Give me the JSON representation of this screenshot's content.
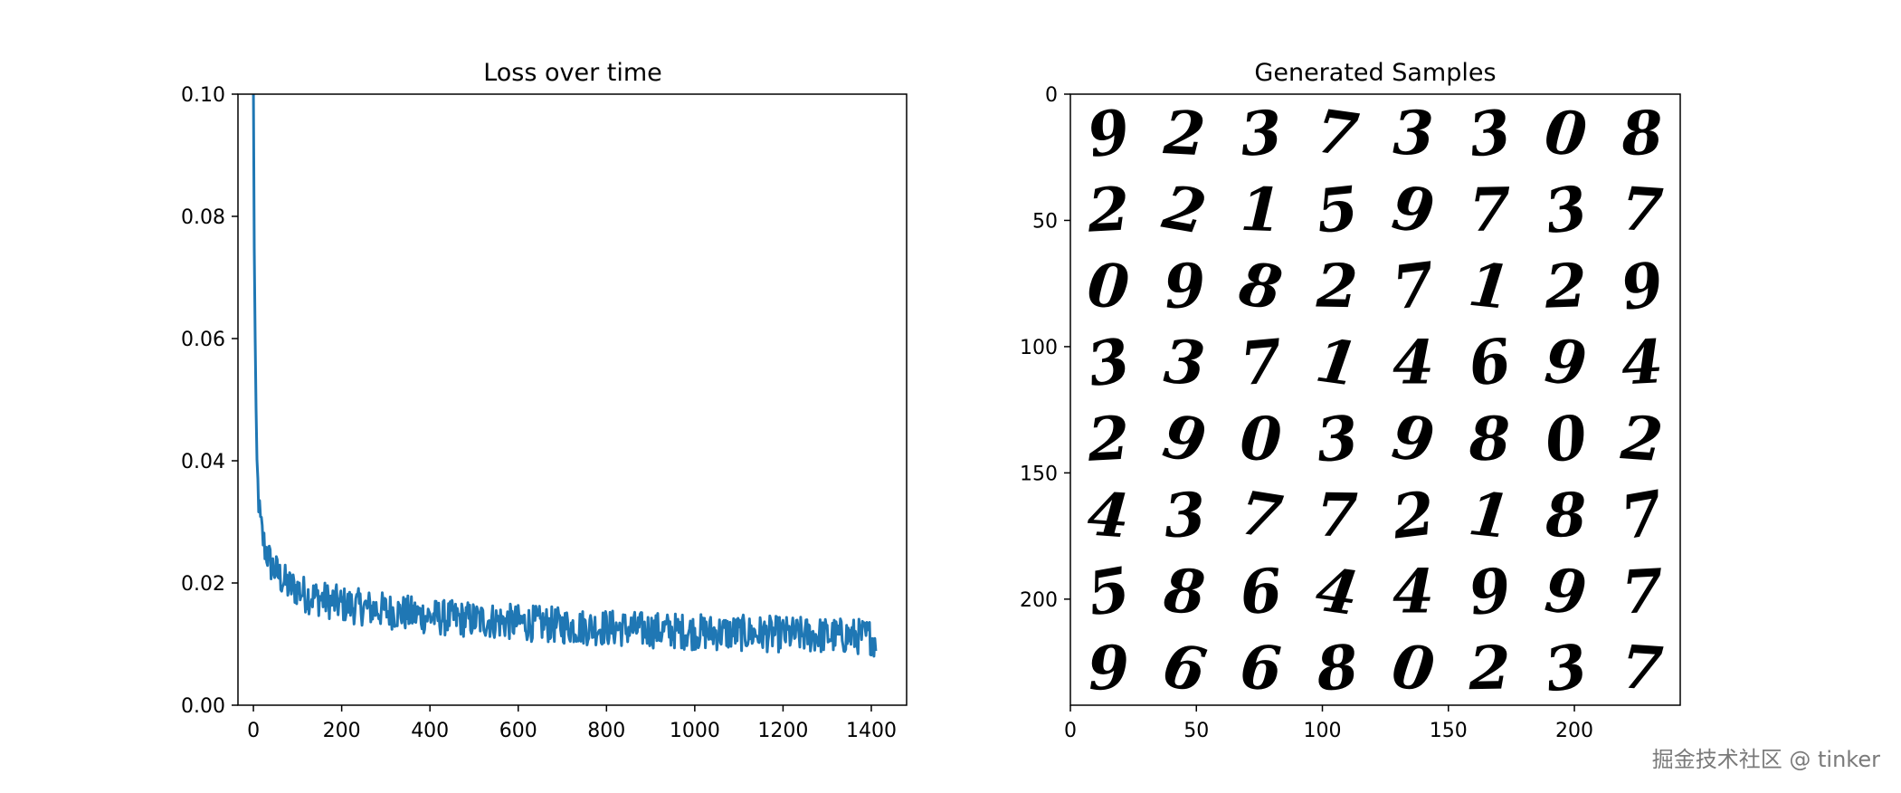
{
  "watermark": "掘金技术社区 @ tinker",
  "colors": {
    "line": "#1f77b4",
    "axes": "#000000",
    "background": "#ffffff"
  },
  "chart_data": [
    {
      "type": "line",
      "title": "Loss over time",
      "xlabel": "",
      "ylabel": "",
      "xlim": [
        -35,
        1480
      ],
      "ylim": [
        0.0,
        0.1
      ],
      "xticks": [
        0,
        200,
        400,
        600,
        800,
        1000,
        1200,
        1400
      ],
      "yticks": [
        0.0,
        0.02,
        0.04,
        0.06,
        0.08,
        0.1
      ],
      "ytick_labels": [
        "0.00",
        "0.02",
        "0.04",
        "0.06",
        "0.08",
        "0.10"
      ],
      "grid": false,
      "series": [
        {
          "color": "#1f77b4",
          "x": [
            0,
            2,
            4,
            6,
            8,
            10,
            15,
            20,
            25,
            30,
            40,
            50,
            60,
            80,
            100,
            120,
            150,
            200,
            250,
            300,
            350,
            400,
            450,
            500,
            550,
            600,
            650,
            700,
            750,
            800,
            850,
            900,
            950,
            1000,
            1050,
            1100,
            1150,
            1200,
            1250,
            1300,
            1350,
            1400,
            1410
          ],
          "y": [
            0.1,
            0.075,
            0.06,
            0.048,
            0.04,
            0.036,
            0.03,
            0.028,
            0.026,
            0.025,
            0.023,
            0.022,
            0.021,
            0.0195,
            0.019,
            0.018,
            0.0175,
            0.0165,
            0.016,
            0.0155,
            0.015,
            0.0145,
            0.0142,
            0.014,
            0.0138,
            0.0135,
            0.0133,
            0.013,
            0.0128,
            0.0127,
            0.0125,
            0.0123,
            0.0122,
            0.012,
            0.0119,
            0.0118,
            0.0117,
            0.0116,
            0.0115,
            0.0114,
            0.0113,
            0.0112,
            0.0105
          ],
          "noise_amplitude": 0.003
        }
      ]
    },
    {
      "type": "image",
      "title": "Generated Samples",
      "xlim": [
        0,
        242
      ],
      "ylim": [
        242,
        0
      ],
      "xticks": [
        0,
        50,
        100,
        150,
        200
      ],
      "yticks": [
        0,
        50,
        100,
        150,
        200
      ],
      "grid_rows": 8,
      "grid_cols": 8,
      "samples": [
        [
          "9",
          "2",
          "3",
          "7",
          "3",
          "3",
          "0",
          "8"
        ],
        [
          "2",
          "2",
          "1",
          "5",
          "9",
          "7",
          "3",
          "7"
        ],
        [
          "0",
          "9",
          "8",
          "2",
          "7",
          "1",
          "2",
          "9"
        ],
        [
          "3",
          "3",
          "7",
          "1",
          "4",
          "6",
          "9",
          "4"
        ],
        [
          "2",
          "9",
          "0",
          "3",
          "9",
          "8",
          "0",
          "2"
        ],
        [
          "4",
          "3",
          "7",
          "7",
          "2",
          "1",
          "8",
          "7"
        ],
        [
          "5",
          "8",
          "6",
          "4",
          "4",
          "9",
          "9",
          "7"
        ],
        [
          "9",
          "6",
          "6",
          "8",
          "0",
          "2",
          "3",
          "7"
        ]
      ]
    }
  ]
}
